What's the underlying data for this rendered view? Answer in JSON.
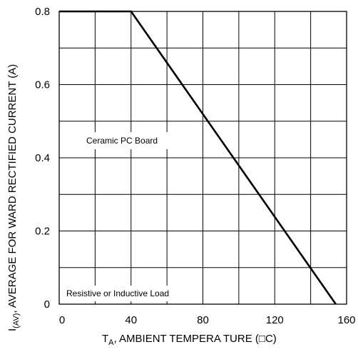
{
  "chart_data": {
    "type": "line",
    "xlabel_main": "T",
    "xlabel_sub": "A",
    "xlabel_rest": ", AMBIENT   TEMPERA  TURE   (□C)",
    "ylabel_main": "I",
    "ylabel_sub": "(AV)",
    "ylabel_rest": ", AVERAGE   FOR WARD  RECTIFIED   CURRENT   (A)",
    "xlim": [
      0,
      160
    ],
    "ylim": [
      0,
      0.8
    ],
    "xticks": [
      0,
      40,
      80,
      120,
      160
    ],
    "xtick_labels": [
      "0",
      "40",
      "80",
      "120",
      "160"
    ],
    "yticks": [
      0,
      0.2,
      0.4,
      0.6,
      0.8
    ],
    "ytick_labels": [
      "0",
      "0.2",
      "0.4",
      "0.6",
      "0.8"
    ],
    "grid": true,
    "grid_x_step": 20,
    "grid_y_step": 0.1,
    "series": [
      {
        "x": [
          0,
          40,
          154
        ],
        "y": [
          0.8,
          0.8,
          0
        ]
      }
    ],
    "annotations": {
      "board": "Ceramic  PC  Board",
      "load": "Resistive   or Inductive Load"
    }
  }
}
